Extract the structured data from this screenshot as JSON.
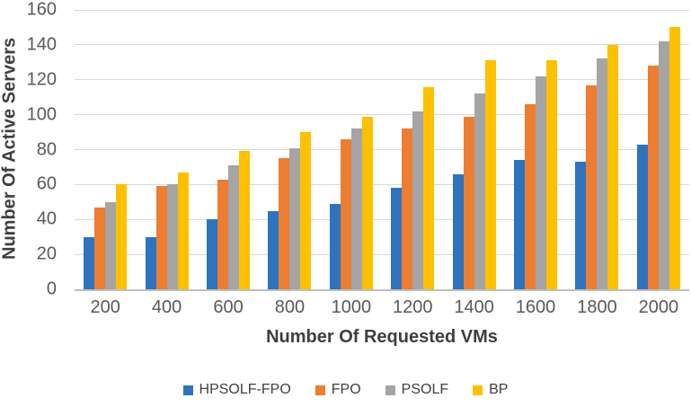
{
  "chart_data": {
    "type": "bar",
    "title": "",
    "xlabel": "Number Of Requested VMs",
    "ylabel": "Number Of Active Servers",
    "categories": [
      "200",
      "400",
      "600",
      "800",
      "1000",
      "1200",
      "1400",
      "1600",
      "1800",
      "2000"
    ],
    "series": [
      {
        "name": "HPSOLF-FPO",
        "color": "#2E73BE",
        "values": [
          30,
          30,
          40,
          45,
          49,
          58,
          66,
          74,
          73,
          83
        ]
      },
      {
        "name": "FPO",
        "color": "#ED7D31",
        "values": [
          47,
          59,
          63,
          75,
          86,
          92,
          99,
          106,
          117,
          128
        ]
      },
      {
        "name": "PSOLF",
        "color": "#A5A5A5",
        "values": [
          50,
          60,
          71,
          81,
          92,
          102,
          112,
          122,
          132,
          142
        ]
      },
      {
        "name": "BP",
        "color": "#FFC000",
        "values": [
          60,
          67,
          79,
          90,
          99,
          116,
          131,
          131,
          140,
          150
        ]
      }
    ],
    "ylim": [
      0,
      160
    ],
    "ytick_step": 20,
    "yticks": [
      "160",
      "140",
      "120",
      "100",
      "80",
      "60",
      "40",
      "20",
      "0"
    ],
    "grid": true,
    "legend_position": "bottom",
    "colors": {
      "gridline": "#D9D9D9",
      "axis_line": "#BFBFBF",
      "tick_label": "#595959",
      "axis_title": "#3E3E3E",
      "legend_text": "#404040",
      "background": "#FFFFFF"
    }
  }
}
